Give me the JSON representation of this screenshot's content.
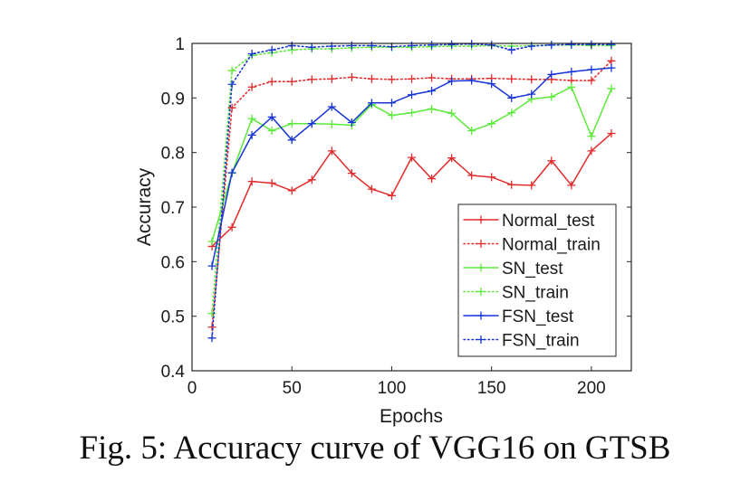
{
  "chart_data": {
    "type": "line",
    "title": "",
    "xlabel": "Epochs",
    "ylabel": "Accuracy",
    "xlim": [
      0,
      220
    ],
    "ylim": [
      0.4,
      1.0
    ],
    "xticks": [
      0,
      50,
      100,
      150,
      200
    ],
    "yticks": [
      0.4,
      0.5,
      0.6,
      0.7,
      0.8,
      0.9,
      1.0
    ],
    "xtick_labels": [
      "0",
      "50",
      "100",
      "150",
      "200"
    ],
    "ytick_labels": [
      "0.4",
      "0.5",
      "0.6",
      "0.7",
      "0.8",
      "0.9",
      "1"
    ],
    "grid": false,
    "legend_position": "lower-right",
    "x": [
      10,
      20,
      30,
      40,
      50,
      60,
      70,
      80,
      90,
      100,
      110,
      120,
      130,
      140,
      150,
      160,
      170,
      180,
      190,
      200,
      210
    ],
    "series": [
      {
        "name": "Normal_test",
        "color": "#e32b2b",
        "style": "solid",
        "values": [
          0.628,
          0.663,
          0.747,
          0.744,
          0.73,
          0.75,
          0.803,
          0.762,
          0.733,
          0.721,
          0.791,
          0.752,
          0.79,
          0.758,
          0.755,
          0.741,
          0.74,
          0.785,
          0.74,
          0.803,
          0.835
        ]
      },
      {
        "name": "Normal_train",
        "color": "#e32b2b",
        "style": "dotted",
        "values": [
          0.48,
          0.882,
          0.92,
          0.93,
          0.93,
          0.934,
          0.935,
          0.938,
          0.935,
          0.934,
          0.935,
          0.937,
          0.935,
          0.935,
          0.936,
          0.935,
          0.934,
          0.934,
          0.932,
          0.932,
          0.968
        ]
      },
      {
        "name": "SN_test",
        "color": "#5bea39",
        "style": "solid",
        "values": [
          0.637,
          0.762,
          0.862,
          0.84,
          0.853,
          0.853,
          0.852,
          0.85,
          0.888,
          0.868,
          0.873,
          0.88,
          0.872,
          0.84,
          0.853,
          0.873,
          0.898,
          0.902,
          0.92,
          0.83,
          0.917
        ]
      },
      {
        "name": "SN_train",
        "color": "#5bea39",
        "style": "dotted",
        "values": [
          0.505,
          0.95,
          0.978,
          0.983,
          0.988,
          0.99,
          0.99,
          0.992,
          0.993,
          0.993,
          0.993,
          0.994,
          0.995,
          0.995,
          0.996,
          0.995,
          0.996,
          0.997,
          0.997,
          0.996,
          0.996
        ]
      },
      {
        "name": "FSN_test",
        "color": "#1734d6",
        "style": "solid",
        "values": [
          0.592,
          0.763,
          0.832,
          0.865,
          0.823,
          0.853,
          0.884,
          0.855,
          0.891,
          0.891,
          0.906,
          0.913,
          0.931,
          0.932,
          0.926,
          0.9,
          0.907,
          0.943,
          0.948,
          0.952,
          0.955
        ]
      },
      {
        "name": "FSN_train",
        "color": "#1734d6",
        "style": "dotted",
        "values": [
          0.46,
          0.925,
          0.981,
          0.988,
          0.996,
          0.993,
          0.995,
          0.996,
          0.996,
          0.994,
          0.996,
          0.997,
          0.998,
          0.999,
          0.997,
          0.988,
          0.995,
          0.997,
          0.998,
          0.998,
          0.998
        ]
      }
    ]
  },
  "caption": "Fig. 5: Accuracy curve of VGG16 on GTSB"
}
